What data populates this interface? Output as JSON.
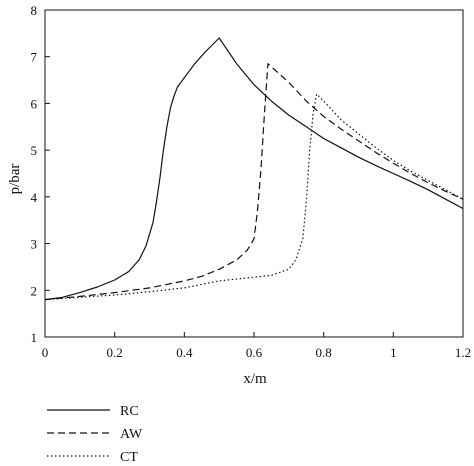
{
  "chart_data": {
    "type": "line",
    "xlabel": "x/m",
    "ylabel": "p/bar",
    "xlim": [
      0,
      1.2
    ],
    "ylim": [
      1,
      8
    ],
    "xticks": [
      {
        "value": 0,
        "label": "0"
      },
      {
        "value": 0.2,
        "label": "0.2"
      },
      {
        "value": 0.4,
        "label": "0.4"
      },
      {
        "value": 0.6,
        "label": "0.6"
      },
      {
        "value": 0.8,
        "label": "0.8"
      },
      {
        "value": 1.0,
        "label": "1"
      },
      {
        "value": 1.2,
        "label": "1.2"
      }
    ],
    "yticks": [
      {
        "value": 1,
        "label": "1"
      },
      {
        "value": 2,
        "label": "2"
      },
      {
        "value": 3,
        "label": "3"
      },
      {
        "value": 4,
        "label": "4"
      },
      {
        "value": 5,
        "label": "5"
      },
      {
        "value": 6,
        "label": "6"
      },
      {
        "value": 7,
        "label": "7"
      },
      {
        "value": 8,
        "label": "8"
      }
    ],
    "grid": false,
    "legend_position": "bottom-left, below plot",
    "series": [
      {
        "name": "RC",
        "style": "solid",
        "color": "#111111",
        "x": [
          0.0,
          0.05,
          0.1,
          0.15,
          0.2,
          0.24,
          0.27,
          0.29,
          0.31,
          0.32,
          0.33,
          0.34,
          0.35,
          0.36,
          0.37,
          0.38,
          0.4,
          0.43,
          0.46,
          0.5,
          0.55,
          0.6,
          0.65,
          0.7,
          0.75,
          0.8,
          0.85,
          0.9,
          0.95,
          1.0,
          1.05,
          1.1,
          1.15,
          1.2
        ],
        "y": [
          1.8,
          1.85,
          1.95,
          2.07,
          2.22,
          2.4,
          2.65,
          2.95,
          3.45,
          3.9,
          4.4,
          5.0,
          5.5,
          5.9,
          6.15,
          6.35,
          6.55,
          6.85,
          7.1,
          7.4,
          6.85,
          6.4,
          6.05,
          5.75,
          5.5,
          5.25,
          5.05,
          4.85,
          4.67,
          4.5,
          4.33,
          4.15,
          3.95,
          3.75
        ]
      },
      {
        "name": "AW",
        "style": "dashed",
        "color": "#111111",
        "x": [
          0.0,
          0.1,
          0.2,
          0.3,
          0.4,
          0.45,
          0.5,
          0.55,
          0.58,
          0.6,
          0.61,
          0.62,
          0.63,
          0.64,
          0.7,
          0.75,
          0.8,
          0.85,
          0.9,
          0.95,
          1.0,
          1.05,
          1.1,
          1.15,
          1.2
        ],
        "y": [
          1.8,
          1.87,
          1.95,
          2.05,
          2.2,
          2.3,
          2.45,
          2.65,
          2.85,
          3.1,
          3.7,
          4.6,
          5.8,
          6.85,
          6.45,
          6.05,
          5.72,
          5.45,
          5.2,
          4.95,
          4.72,
          4.5,
          4.3,
          4.12,
          3.95
        ]
      },
      {
        "name": "CT",
        "style": "dotted",
        "color": "#111111",
        "x": [
          0.0,
          0.1,
          0.2,
          0.3,
          0.4,
          0.5,
          0.6,
          0.65,
          0.7,
          0.72,
          0.74,
          0.75,
          0.76,
          0.77,
          0.78,
          0.8,
          0.85,
          0.9,
          0.95,
          1.0,
          1.05,
          1.1,
          1.15,
          1.2
        ],
        "y": [
          1.8,
          1.85,
          1.9,
          1.97,
          2.05,
          2.2,
          2.28,
          2.32,
          2.45,
          2.65,
          3.1,
          3.9,
          5.0,
          5.8,
          6.2,
          6.05,
          5.65,
          5.35,
          5.05,
          4.78,
          4.55,
          4.35,
          4.15,
          3.95
        ]
      }
    ]
  }
}
